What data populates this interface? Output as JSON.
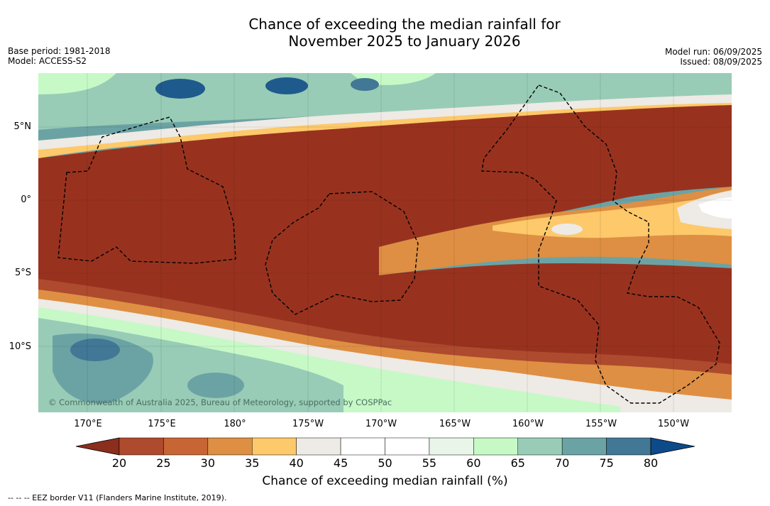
{
  "title_line1": "Chance of exceeding the median rainfall for",
  "title_line2": "November 2025 to January 2026",
  "base_period": "Base period: 1981-2018",
  "model": "Model: ACCESS-S2",
  "model_run": "Model run: 06/09/2025",
  "issued": "Issued: 08/09/2025",
  "credit": "© Commonwealth of Australia 2025, Bureau of Meteorology, supported by COSPPac",
  "lat_labels": [
    "5°N",
    "0°",
    "5°S",
    "10°S"
  ],
  "lon_labels": [
    "170°E",
    "175°E",
    "180°",
    "175°W",
    "170°W",
    "165°W",
    "160°W",
    "155°W",
    "150°W"
  ],
  "colorbar": {
    "ticks": [
      "20",
      "25",
      "30",
      "35",
      "40",
      "45",
      "50",
      "55",
      "60",
      "65",
      "70",
      "75",
      "80"
    ],
    "colors": [
      "#98321f",
      "#ae4a2e",
      "#c76534",
      "#de8f43",
      "#fdc96a",
      "#eeeae5",
      "#ffffff",
      "#ffffff",
      "#e8f5e8",
      "#c6f9c6",
      "#98ccb6",
      "#6ba3a5",
      "#427795"
    ],
    "low_color": "#8b2e1d",
    "high_color": "#0d4a8a",
    "label": "Chance of exceeding median rainfall (%)"
  },
  "legend_eez": "--  --  -- EEZ border V11 (Flanders Marine Institute, 2019).",
  "colors": {
    "dry": "#98321f",
    "wet_strong": "#1f5a8c"
  }
}
